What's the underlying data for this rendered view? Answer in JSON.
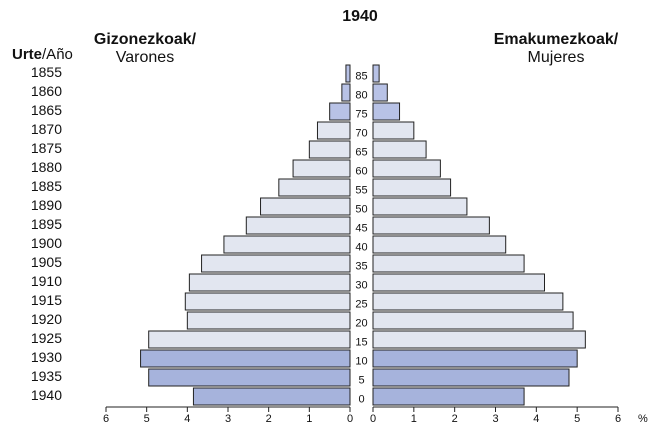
{
  "chart_data": {
    "type": "pyramid",
    "title": "1940",
    "ylabel": [
      "Urte",
      "/Año"
    ],
    "categories": [
      "1855",
      "1860",
      "1865",
      "1870",
      "1875",
      "1880",
      "1885",
      "1890",
      "1895",
      "1900",
      "1905",
      "1910",
      "1915",
      "1920",
      "1925",
      "1930",
      "1935",
      "1940"
    ],
    "ages": [
      85,
      80,
      75,
      70,
      65,
      60,
      55,
      50,
      45,
      40,
      35,
      30,
      25,
      20,
      15,
      10,
      5,
      0
    ],
    "series": [
      {
        "name": "Gizonezkoak/",
        "subname": "Varones",
        "side": "left",
        "colors": [
          "#b8c2e6",
          "#b8c2e6",
          "#b8c2e6",
          "#e2e6f0",
          "#e2e6f0",
          "#e2e6f0",
          "#e2e6f0",
          "#e2e6f0",
          "#e2e6f0",
          "#e2e6f0",
          "#e2e6f0",
          "#e2e6f0",
          "#e2e6f0",
          "#e2e6f0",
          "#e2e6f0",
          "#a6b3dc",
          "#a6b3dc",
          "#a6b3dc"
        ],
        "values": [
          0.1,
          0.2,
          0.5,
          0.8,
          1.0,
          1.4,
          1.75,
          2.2,
          2.55,
          3.1,
          3.65,
          3.95,
          4.05,
          4.0,
          4.95,
          5.15,
          4.95,
          3.85
        ]
      },
      {
        "name": "Emakumezkoak/",
        "subname": "Mujeres",
        "side": "right",
        "colors": [
          "#b8c2e6",
          "#b8c2e6",
          "#b8c2e6",
          "#e2e6f0",
          "#e2e6f0",
          "#e2e6f0",
          "#e2e6f0",
          "#e2e6f0",
          "#e2e6f0",
          "#e2e6f0",
          "#e2e6f0",
          "#e2e6f0",
          "#e2e6f0",
          "#e2e6f0",
          "#e2e6f0",
          "#a6b3dc",
          "#a6b3dc",
          "#a6b3dc"
        ],
        "values": [
          0.15,
          0.35,
          0.65,
          1.0,
          1.3,
          1.65,
          1.9,
          2.3,
          2.85,
          3.25,
          3.7,
          4.2,
          4.65,
          4.9,
          5.2,
          5.0,
          4.8,
          3.7
        ]
      }
    ],
    "xlim": [
      0,
      6
    ],
    "xticks": [
      0,
      1,
      2,
      3,
      4,
      5,
      6
    ],
    "x_unit": "%"
  }
}
